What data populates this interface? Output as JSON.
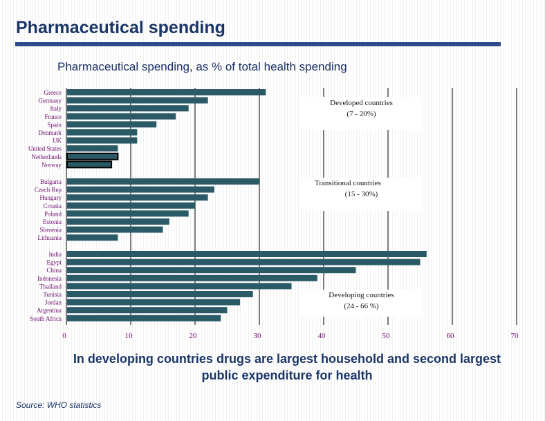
{
  "title": "Pharmaceutical spending",
  "footer": "In developing countries drugs are largest household and second largest public expenditure for health",
  "source": "Source: WHO statistics",
  "chart_data": {
    "type": "bar",
    "orientation": "horizontal",
    "title": "Pharmaceutical spending, as % of total health spending",
    "xlim": [
      0,
      70
    ],
    "xticks": [
      0,
      10,
      20,
      30,
      40,
      50,
      60,
      70
    ],
    "grid": true,
    "bar_color": "#2a5a66",
    "groups": [
      {
        "note_line1": "Developed countries",
        "note_line2": "(7 - 20%)",
        "categories": [
          "Greece",
          "Germany",
          "Italy",
          "France",
          "Spain",
          "Denmark",
          "UK",
          "United States",
          "Netherlands",
          "Norway"
        ],
        "values": [
          31,
          22,
          19,
          17,
          14,
          11,
          11,
          8,
          8,
          7
        ],
        "outlined": [
          "Netherlands",
          "Norway"
        ]
      },
      {
        "note_line1": "Transitional countries",
        "note_line2": "(15 - 30%)",
        "categories": [
          "Bulgaria",
          "Czech Rep",
          "Hungary",
          "Croatia",
          "Poland",
          "Estonia",
          "Slovenia",
          "Lithuania"
        ],
        "values": [
          30,
          23,
          22,
          20,
          19,
          16,
          15,
          8
        ],
        "outlined": []
      },
      {
        "note_line1": "Developing countries",
        "note_line2": "(24 - 66 %)",
        "categories": [
          "India",
          "Egypt",
          "China",
          "Indonesia",
          "Thailand",
          "Tunisia",
          "Jordan",
          "Argentina",
          "South Africa"
        ],
        "values": [
          56,
          55,
          45,
          39,
          35,
          29,
          27,
          25,
          24
        ],
        "outlined": []
      }
    ]
  }
}
